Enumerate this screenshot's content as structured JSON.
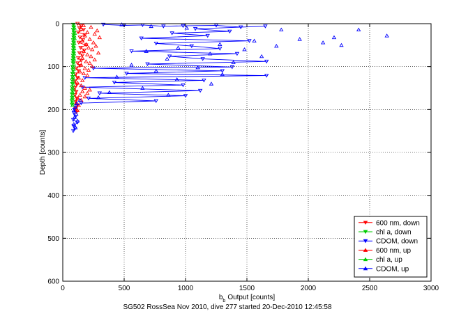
{
  "chart_data": {
    "type": "scatter",
    "title": "",
    "xlabel": "Output [counts]",
    "xlabel_prefix": "b",
    "xlabel_subscript": "b",
    "ylabel": "Depth [counts]",
    "caption": "SG502 RossSea Nov 2010, dive 277 started 20-Dec-2010 12:45:58",
    "xlim": [
      0,
      3000
    ],
    "ylim": [
      0,
      600
    ],
    "y_reversed": true,
    "grid": true,
    "grid_style": "dotted",
    "x_ticks": [
      0,
      500,
      1000,
      1500,
      2000,
      2500,
      3000
    ],
    "y_ticks": [
      0,
      100,
      200,
      300,
      400,
      500,
      600
    ],
    "legend_position": "bottom-right",
    "series": [
      {
        "name": "600 nm, down",
        "color": "#ff0000",
        "marker": "triangle-down",
        "line": true,
        "points": [
          [
            120,
            0
          ],
          [
            150,
            5
          ],
          [
            135,
            10
          ],
          [
            170,
            14
          ],
          [
            125,
            20
          ],
          [
            180,
            26
          ],
          [
            140,
            32
          ],
          [
            165,
            38
          ],
          [
            130,
            44
          ],
          [
            190,
            50
          ],
          [
            145,
            56
          ],
          [
            175,
            62
          ],
          [
            135,
            68
          ],
          [
            160,
            74
          ],
          [
            125,
            80
          ],
          [
            150,
            86
          ],
          [
            120,
            92
          ],
          [
            140,
            98
          ],
          [
            110,
            104
          ],
          [
            130,
            110
          ],
          [
            105,
            118
          ],
          [
            120,
            126
          ],
          [
            100,
            134
          ],
          [
            115,
            142
          ],
          [
            98,
            150
          ],
          [
            110,
            158
          ],
          [
            100,
            166
          ],
          [
            115,
            174
          ],
          [
            104,
            182
          ],
          [
            120,
            190
          ],
          [
            106,
            198
          ],
          [
            112,
            206
          ]
        ]
      },
      {
        "name": "chl a, down",
        "color": "#00cc00",
        "marker": "triangle-down",
        "line": true,
        "points": [
          [
            85,
            2
          ],
          [
            88,
            8
          ],
          [
            84,
            14
          ],
          [
            90,
            20
          ],
          [
            86,
            26
          ],
          [
            88,
            32
          ],
          [
            84,
            38
          ],
          [
            87,
            44
          ],
          [
            83,
            50
          ],
          [
            86,
            56
          ],
          [
            84,
            62
          ],
          [
            87,
            68
          ],
          [
            83,
            74
          ],
          [
            85,
            80
          ],
          [
            82,
            86
          ],
          [
            84,
            92
          ],
          [
            80,
            100
          ],
          [
            82,
            108
          ],
          [
            78,
            116
          ],
          [
            80,
            124
          ],
          [
            76,
            132
          ],
          [
            78,
            140
          ],
          [
            75,
            148
          ],
          [
            77,
            156
          ],
          [
            74,
            164
          ],
          [
            76,
            172
          ],
          [
            73,
            180
          ],
          [
            75,
            188
          ]
        ]
      },
      {
        "name": "CDOM, down",
        "color": "#0000ff",
        "marker": "triangle-down",
        "line": true,
        "points": [
          [
            330,
            2
          ],
          [
            500,
            4
          ],
          [
            650,
            3
          ],
          [
            820,
            6
          ],
          [
            980,
            5
          ],
          [
            1250,
            4
          ],
          [
            1450,
            8
          ],
          [
            1650,
            6
          ],
          [
            1080,
            12
          ],
          [
            1360,
            18
          ],
          [
            890,
            22
          ],
          [
            1180,
            28
          ],
          [
            640,
            34
          ],
          [
            1520,
            40
          ],
          [
            760,
            46
          ],
          [
            1050,
            52
          ],
          [
            1280,
            58
          ],
          [
            560,
            64
          ],
          [
            1420,
            70
          ],
          [
            870,
            76
          ],
          [
            1140,
            82
          ],
          [
            1660,
            88
          ],
          [
            690,
            94
          ],
          [
            1380,
            101
          ],
          [
            250,
            104
          ],
          [
            1300,
            110
          ],
          [
            520,
            116
          ],
          [
            1660,
            121
          ],
          [
            180,
            126
          ],
          [
            1150,
            132
          ],
          [
            420,
            137
          ],
          [
            980,
            143
          ],
          [
            160,
            148
          ],
          [
            1120,
            156
          ],
          [
            300,
            162
          ],
          [
            1000,
            168
          ],
          [
            210,
            174
          ],
          [
            760,
            180
          ],
          [
            150,
            185
          ],
          [
            110,
            192
          ],
          [
            95,
            200
          ],
          [
            90,
            208
          ],
          [
            105,
            216
          ],
          [
            85,
            224
          ],
          [
            120,
            230
          ],
          [
            88,
            238
          ],
          [
            100,
            244
          ],
          [
            85,
            250
          ]
        ]
      },
      {
        "name": "600 nm, up",
        "color": "#ff0000",
        "marker": "triangle-up",
        "line": false,
        "points": [
          [
            170,
            4
          ],
          [
            230,
            8
          ],
          [
            150,
            12
          ],
          [
            280,
            16
          ],
          [
            200,
            20
          ],
          [
            260,
            24
          ],
          [
            180,
            28
          ],
          [
            300,
            32
          ],
          [
            220,
            36
          ],
          [
            160,
            40
          ],
          [
            250,
            44
          ],
          [
            190,
            48
          ],
          [
            270,
            52
          ],
          [
            210,
            56
          ],
          [
            240,
            60
          ],
          [
            170,
            64
          ],
          [
            290,
            68
          ],
          [
            200,
            72
          ],
          [
            230,
            76
          ],
          [
            160,
            80
          ],
          [
            260,
            84
          ],
          [
            190,
            88
          ],
          [
            220,
            92
          ],
          [
            150,
            96
          ],
          [
            240,
            100
          ],
          [
            180,
            104
          ],
          [
            210,
            108
          ],
          [
            140,
            112
          ],
          [
            170,
            116
          ],
          [
            200,
            120
          ],
          [
            130,
            126
          ],
          [
            160,
            132
          ],
          [
            120,
            138
          ],
          [
            150,
            144
          ],
          [
            180,
            150
          ],
          [
            220,
            154
          ],
          [
            160,
            158
          ],
          [
            200,
            162
          ],
          [
            140,
            166
          ],
          [
            180,
            170
          ],
          [
            120,
            174
          ],
          [
            150,
            178
          ],
          [
            110,
            184
          ],
          [
            130,
            190
          ],
          [
            105,
            196
          ],
          [
            120,
            202
          ]
        ]
      },
      {
        "name": "chl a, up",
        "color": "#00cc00",
        "marker": "triangle-up",
        "line": false,
        "points": [
          [
            90,
            4
          ],
          [
            95,
            10
          ],
          [
            92,
            16
          ],
          [
            98,
            22
          ],
          [
            93,
            28
          ],
          [
            96,
            34
          ],
          [
            91,
            40
          ],
          [
            94,
            46
          ],
          [
            90,
            52
          ],
          [
            93,
            58
          ],
          [
            89,
            64
          ],
          [
            92,
            70
          ],
          [
            88,
            76
          ],
          [
            91,
            82
          ],
          [
            87,
            88
          ],
          [
            90,
            94
          ],
          [
            86,
            100
          ],
          [
            88,
            106
          ],
          [
            84,
            112
          ],
          [
            87,
            118
          ],
          [
            83,
            124
          ],
          [
            85,
            130
          ],
          [
            82,
            136
          ],
          [
            84,
            142
          ],
          [
            81,
            148
          ],
          [
            83,
            154
          ],
          [
            80,
            160
          ],
          [
            82,
            166
          ],
          [
            79,
            172
          ],
          [
            81,
            178
          ],
          [
            78,
            184
          ],
          [
            80,
            190
          ]
        ]
      },
      {
        "name": "CDOM, up",
        "color": "#0000ff",
        "marker": "triangle-up",
        "line": false,
        "points": [
          [
            480,
            2
          ],
          [
            720,
            6
          ],
          [
            1010,
            10
          ],
          [
            1780,
            14
          ],
          [
            2410,
            14
          ],
          [
            2640,
            28
          ],
          [
            2210,
            32
          ],
          [
            1930,
            36
          ],
          [
            1560,
            40
          ],
          [
            2120,
            44
          ],
          [
            1280,
            48
          ],
          [
            1740,
            52
          ],
          [
            940,
            56
          ],
          [
            1480,
            60
          ],
          [
            2270,
            50
          ],
          [
            680,
            64
          ],
          [
            1200,
            70
          ],
          [
            1620,
            76
          ],
          [
            850,
            82
          ],
          [
            1390,
            90
          ],
          [
            560,
            96
          ],
          [
            1100,
            102
          ],
          [
            760,
            110
          ],
          [
            1300,
            118
          ],
          [
            440,
            124
          ],
          [
            930,
            130
          ],
          [
            1210,
            140
          ],
          [
            650,
            150
          ],
          [
            380,
            160
          ],
          [
            860,
            166
          ],
          [
            290,
            172
          ],
          [
            140,
            178
          ],
          [
            115,
            186
          ],
          [
            100,
            194
          ],
          [
            92,
            202
          ],
          [
            110,
            210
          ],
          [
            96,
            218
          ],
          [
            120,
            226
          ],
          [
            90,
            234
          ],
          [
            104,
            242
          ]
        ]
      }
    ]
  }
}
